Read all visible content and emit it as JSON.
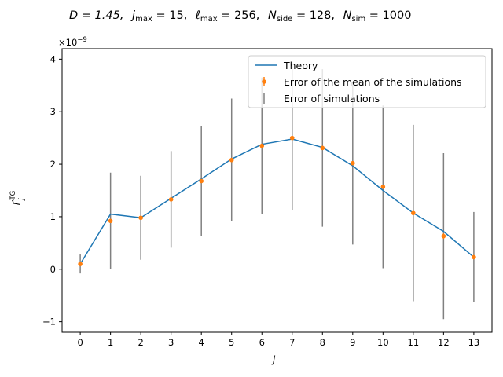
{
  "chart_data": {
    "type": "line",
    "title": "D = 1.45,  j_max = 15,  ℓ_max = 256,  N_side = 128,  N_sim = 1000",
    "title_parts": {
      "D": "D = 1.45,",
      "j": "j",
      "j_sub": "max",
      "j_val": " = 15,",
      "l": "ℓ",
      "l_sub": "max",
      "l_val": " = 256,",
      "n1": "N",
      "n1_sub": "side",
      "n1_val": " = 128,",
      "n2": "N",
      "n2_sub": "sim",
      "n2_val": " = 1000"
    },
    "xlabel": "j",
    "ylabel": "Γ̂",
    "ylabel_sup": "TG",
    "ylabel_sub": "j",
    "y_multiplier": {
      "base": "×10",
      "exp": "−9"
    },
    "xlim": [
      -0.6,
      13.6
    ],
    "ylim": [
      -1.2,
      4.2
    ],
    "x": [
      0,
      1,
      2,
      3,
      4,
      5,
      6,
      7,
      8,
      9,
      10,
      11,
      12,
      13
    ],
    "xticks": [
      0,
      1,
      2,
      3,
      4,
      5,
      6,
      7,
      8,
      9,
      10,
      11,
      12,
      13
    ],
    "yticks": [
      -1,
      0,
      1,
      2,
      3,
      4
    ],
    "grid": false,
    "legend_position": "top-right",
    "series": [
      {
        "name": "Theory",
        "kind": "line",
        "color": "#1f77b4",
        "values": [
          0.1,
          1.05,
          0.98,
          1.35,
          1.72,
          2.1,
          2.38,
          2.48,
          2.32,
          1.97,
          1.5,
          1.07,
          0.72,
          0.23
        ]
      },
      {
        "name": "Error of the mean of the simulations",
        "kind": "errorbar-points",
        "color": "#ff7f0e",
        "values": [
          0.1,
          0.92,
          0.98,
          1.33,
          1.68,
          2.08,
          2.35,
          2.5,
          2.31,
          2.02,
          1.57,
          1.07,
          0.63,
          0.23
        ],
        "errors": [
          0.02,
          0.03,
          0.03,
          0.03,
          0.03,
          0.04,
          0.04,
          0.04,
          0.04,
          0.04,
          0.04,
          0.04,
          0.05,
          0.03
        ]
      },
      {
        "name": "Error of simulations",
        "kind": "errorbar",
        "color": "#808080",
        "center": [
          0.1,
          0.92,
          0.98,
          1.33,
          1.68,
          2.08,
          2.35,
          2.5,
          2.31,
          2.02,
          1.57,
          1.07,
          0.63,
          0.23
        ],
        "errors": [
          0.18,
          0.92,
          0.8,
          0.92,
          1.04,
          1.17,
          1.3,
          1.38,
          1.5,
          1.55,
          1.55,
          1.68,
          1.58,
          0.86
        ]
      }
    ]
  }
}
